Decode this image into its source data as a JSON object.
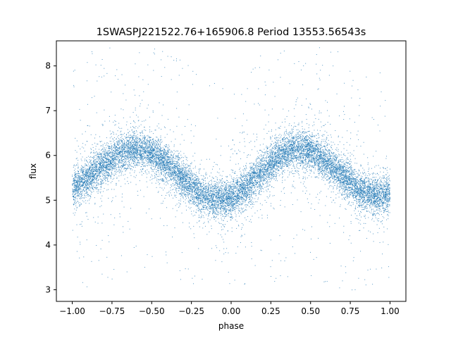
{
  "chart_data": {
    "type": "scatter",
    "title": "1SWASPJ221522.76+165906.8 Period 13553.56543s",
    "xlabel": "phase",
    "ylabel": "flux",
    "xlim": [
      -1.1,
      1.1
    ],
    "ylim": [
      2.74,
      8.56
    ],
    "grid": false,
    "legend": "none",
    "x_ticks": [
      -1.0,
      -0.75,
      -0.5,
      -0.25,
      0.0,
      0.25,
      0.5,
      0.75,
      1.0
    ],
    "x_tick_labels": [
      "−1.00",
      "−0.75",
      "−0.50",
      "−0.25",
      "0.00",
      "0.25",
      "0.50",
      "0.75",
      "1.00"
    ],
    "y_ticks": [
      3,
      4,
      5,
      6,
      7,
      8
    ],
    "y_tick_labels": [
      "3",
      "4",
      "5",
      "6",
      "7",
      "8"
    ],
    "marker_color": "#1f77b4",
    "series": [
      {
        "x": [
          -1.0,
          -0.9,
          -0.8,
          -0.7,
          -0.6,
          -0.5,
          -0.4,
          -0.3,
          -0.2,
          -0.1,
          0.0,
          0.1,
          0.2,
          0.3,
          0.4,
          0.5,
          0.6,
          0.7,
          0.8,
          0.9,
          1.0
        ],
        "y": [
          5.25,
          5.5,
          5.8,
          6.05,
          6.15,
          6.05,
          5.8,
          5.45,
          5.15,
          5.0,
          5.05,
          5.3,
          5.65,
          6.0,
          6.15,
          6.1,
          5.85,
          5.55,
          5.25,
          5.1,
          5.15
        ]
      }
    ]
  }
}
